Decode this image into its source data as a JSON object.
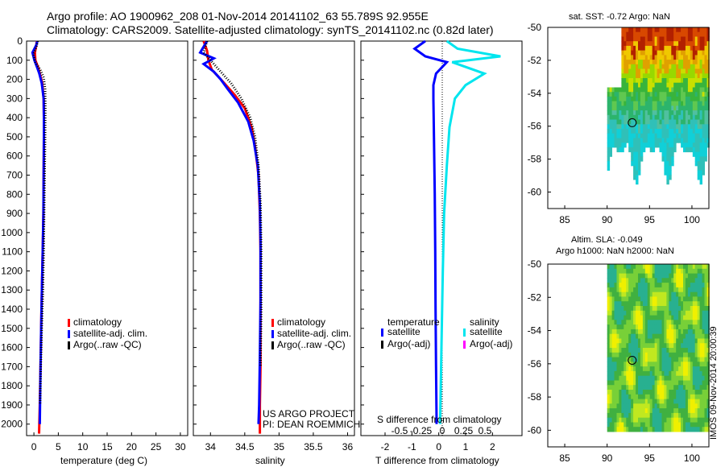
{
  "header": {
    "title_line1": "Argo profile: AO 1900962_208 01-Nov-2014 20141102_63 55.789S 92.955E",
    "title_line2": "Climatology: CARS2009. Satellite-adjusted climatology: synTS_20141102.nc (0.82d later)"
  },
  "depth_axis": {
    "range": [
      0,
      2060
    ],
    "ticks": [
      0,
      100,
      200,
      300,
      400,
      500,
      600,
      700,
      800,
      900,
      1000,
      1100,
      1200,
      1300,
      1400,
      1500,
      1600,
      1700,
      1800,
      1900,
      2000
    ],
    "tick_labels": [
      "0",
      "100",
      "200",
      "300",
      "400",
      "500",
      "600",
      "700",
      "800",
      "900",
      "1000",
      "1100",
      "1200",
      "1300",
      "1400",
      "1500",
      "1600",
      "1700",
      "1800",
      "1900",
      "2000"
    ]
  },
  "colors": {
    "climatology": "#ff0000",
    "satellite": "#0000ff",
    "argo": "#000000",
    "sat_salinity": "#00e5ee",
    "argo_salinity": "#ff00ff"
  },
  "chart_data": [
    {
      "type": "line",
      "panel": "temperature",
      "xlabel": "temperature (deg C)",
      "xlim": [
        -1.5,
        31.5
      ],
      "xticks": [
        0,
        5,
        10,
        15,
        20,
        25,
        30
      ],
      "xtick_labels": [
        "0",
        "5",
        "10",
        "15",
        "20",
        "25",
        "30"
      ],
      "legend": [
        "climatology",
        "satellite-adj. clim.",
        "Argo(..raw -QC)"
      ],
      "series": [
        {
          "name": "climatology",
          "x": [
            0.6,
            0.5,
            0.2,
            0.3,
            0.9,
            1.2,
            1.7,
            2.0,
            2.05,
            2.05,
            2.0,
            1.95,
            1.8,
            1.55,
            1.35,
            1.2,
            1.05
          ],
          "depth": [
            0,
            20,
            60,
            100,
            140,
            170,
            220,
            300,
            400,
            500,
            700,
            900,
            1100,
            1400,
            1700,
            1900,
            2050
          ]
        },
        {
          "name": "satellite-adj. clim.",
          "x": [
            0.7,
            0.5,
            -0.3,
            0.1,
            0.7,
            1.1,
            1.6,
            2.0,
            2.05,
            2.05,
            2.0,
            1.95,
            1.8,
            1.55,
            1.35,
            1.25,
            1.2
          ],
          "depth": [
            0,
            20,
            60,
            100,
            140,
            170,
            220,
            300,
            400,
            500,
            700,
            900,
            1100,
            1400,
            1700,
            1900,
            2000
          ]
        },
        {
          "name": "Argo(..raw -QC)",
          "x": [
            0.8,
            0.5,
            -0.1,
            0.3,
            1.3,
            2.0,
            2.3,
            2.35,
            2.3,
            2.2,
            2.1,
            2.0,
            1.85,
            1.6,
            1.4,
            1.25
          ],
          "depth": [
            0,
            30,
            70,
            110,
            150,
            190,
            250,
            350,
            500,
            700,
            900,
            1100,
            1300,
            1500,
            1700,
            1900
          ]
        }
      ]
    },
    {
      "type": "line",
      "panel": "salinity",
      "xlabel": "salinity",
      "xlim": [
        33.75,
        36.1
      ],
      "xticks": [
        34,
        34.5,
        35,
        35.5,
        36
      ],
      "xtick_labels": [
        "34",
        "34.5",
        "35",
        "35.5",
        "36"
      ],
      "legend": [
        "climatology",
        "satellite-adj. clim.",
        "Argo(..raw -QC)"
      ],
      "annotation_lines": [
        "US ARGO PROJECT",
        "PI: DEAN ROEMMICH"
      ],
      "series": [
        {
          "name": "climatology",
          "x": [
            33.9,
            33.95,
            33.97,
            34.02,
            34.1,
            34.2,
            34.35,
            34.5,
            34.6,
            34.65,
            34.7,
            34.72,
            34.73,
            34.73,
            34.73,
            34.72,
            34.72
          ],
          "depth": [
            0,
            50,
            100,
            150,
            180,
            220,
            280,
            350,
            450,
            550,
            700,
            900,
            1100,
            1400,
            1700,
            1900,
            2050
          ]
        },
        {
          "name": "satellite-adj. clim.",
          "x": [
            33.95,
            33.85,
            34.05,
            33.9,
            34.05,
            34.15,
            34.25,
            34.4,
            34.55,
            34.63,
            34.69,
            34.72,
            34.73,
            34.73,
            34.72,
            34.71,
            34.7
          ],
          "depth": [
            0,
            60,
            90,
            120,
            160,
            200,
            250,
            320,
            420,
            520,
            650,
            850,
            1050,
            1350,
            1650,
            1900,
            2000
          ]
        },
        {
          "name": "Argo(..raw -QC)",
          "x": [
            33.95,
            33.9,
            34.0,
            34.15,
            34.3,
            34.45,
            34.58,
            34.65,
            34.7,
            34.73,
            34.74,
            34.74,
            34.73
          ],
          "depth": [
            0,
            60,
            100,
            160,
            220,
            300,
            400,
            500,
            650,
            850,
            1100,
            1400,
            1700
          ]
        }
      ]
    },
    {
      "type": "line",
      "panel": "difference",
      "xlabel": "T difference from climatology",
      "xlim": [
        -2.9,
        3.1
      ],
      "xticks": [
        -2,
        -1,
        0,
        1,
        2
      ],
      "xtick_labels": [
        "-2",
        "-1",
        "0",
        "1",
        "2"
      ],
      "secondary_xlabel": "S difference from climatology",
      "secondary_xticks": [
        -0.5,
        -0.25,
        0,
        0.25,
        0.5
      ],
      "secondary_xtick_labels": [
        "-0.5",
        "-0.25",
        "0",
        "0.25",
        "0.5"
      ],
      "legend_temperature": {
        "title": "temperature",
        "items": [
          "satellite",
          "Argo(-adj)"
        ]
      },
      "legend_salinity": {
        "title": "salinity",
        "items": [
          "satellite",
          "Argo(-adj)"
        ]
      },
      "series": [
        {
          "name": "temperature satellite",
          "x": [
            -0.5,
            -0.9,
            -0.5,
            0.3,
            -0.1,
            -0.2,
            -0.2,
            -0.18,
            -0.15,
            -0.13,
            -0.12,
            -0.1,
            -0.08
          ],
          "depth": [
            0,
            40,
            80,
            110,
            170,
            230,
            300,
            500,
            800,
            1100,
            1400,
            1700,
            2000
          ]
        },
        {
          "name": "salinity satellite (T-axis units)",
          "x": [
            0.3,
            0.7,
            2.3,
            0.5,
            1.7,
            1.0,
            0.6,
            0.4,
            0.3,
            0.2,
            0.15,
            0.1,
            0.05
          ],
          "depth": [
            0,
            40,
            80,
            110,
            170,
            230,
            300,
            450,
            650,
            900,
            1200,
            1600,
            2000
          ]
        }
      ]
    },
    {
      "type": "heatmap",
      "panel": "sat_sst_map",
      "title": "sat. SST: -0.72 Argo: NaN",
      "xlim": [
        83,
        102
      ],
      "ylim": [
        -61,
        -50
      ],
      "xticks": [
        85,
        90,
        95,
        100
      ],
      "yticks": [
        -50,
        -52,
        -54,
        -56,
        -58,
        -60
      ],
      "ytick_labels": [
        "-50",
        "-52",
        "-54",
        "-56",
        "-58",
        "-60"
      ],
      "marker": {
        "lon": 92.955,
        "lat": -55.789
      }
    },
    {
      "type": "heatmap",
      "panel": "altimetry_map",
      "title_line1": "Altim. SLA: -0.049",
      "title_line2": "Argo h1000: NaN h2000: NaN",
      "xlim": [
        83,
        102
      ],
      "ylim": [
        -61,
        -50
      ],
      "xticks": [
        85,
        90,
        95,
        100
      ],
      "yticks": [
        -50,
        -52,
        -54,
        -56,
        -58,
        -60
      ],
      "ytick_labels": [
        "-50",
        "-52",
        "-54",
        "-56",
        "-58",
        "-60"
      ],
      "marker": {
        "lon": 92.955,
        "lat": -55.789
      }
    }
  ],
  "footer": {
    "timestamp": "IMOS 09-Nov-2014 20:00:39"
  }
}
